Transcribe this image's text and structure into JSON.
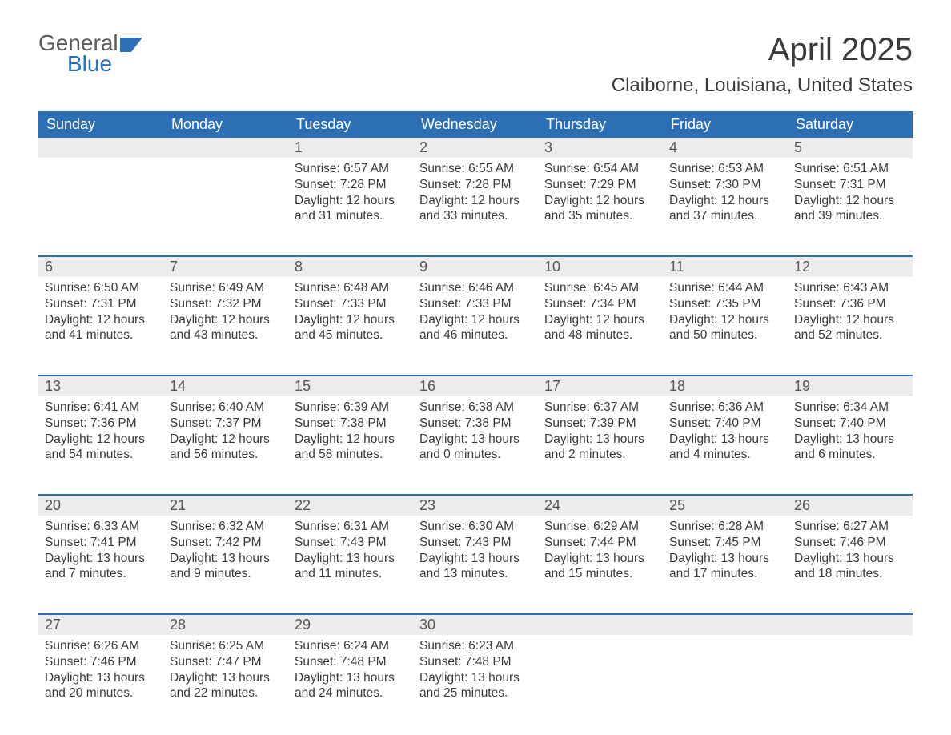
{
  "logo": {
    "word1": "General",
    "word2": "Blue"
  },
  "title": "April 2025",
  "location": "Claiborne, Louisiana, United States",
  "day_headers": [
    "Sunday",
    "Monday",
    "Tuesday",
    "Wednesday",
    "Thursday",
    "Friday",
    "Saturday"
  ],
  "colors": {
    "header_bg": "#2d6fb4",
    "header_text": "#ffffff",
    "daynum_bg": "#ececec",
    "week_divider": "#2d6fb4",
    "body_text": "#3a3a3a",
    "logo_gray": "#5a5a5a",
    "logo_blue": "#2d6fb4",
    "page_bg": "#ffffff"
  },
  "fonts": {
    "title_size_pt": 30,
    "location_size_pt": 18,
    "header_size_pt": 14,
    "daynum_size_pt": 14,
    "body_size_pt": 12
  },
  "layout": {
    "columns": 7,
    "weeks": 5,
    "first_day_column_index": 2
  },
  "weeks": [
    [
      null,
      null,
      {
        "n": "1",
        "sunrise": "Sunrise: 6:57 AM",
        "sunset": "Sunset: 7:28 PM",
        "day": "Daylight: 12 hours and 31 minutes."
      },
      {
        "n": "2",
        "sunrise": "Sunrise: 6:55 AM",
        "sunset": "Sunset: 7:28 PM",
        "day": "Daylight: 12 hours and 33 minutes."
      },
      {
        "n": "3",
        "sunrise": "Sunrise: 6:54 AM",
        "sunset": "Sunset: 7:29 PM",
        "day": "Daylight: 12 hours and 35 minutes."
      },
      {
        "n": "4",
        "sunrise": "Sunrise: 6:53 AM",
        "sunset": "Sunset: 7:30 PM",
        "day": "Daylight: 12 hours and 37 minutes."
      },
      {
        "n": "5",
        "sunrise": "Sunrise: 6:51 AM",
        "sunset": "Sunset: 7:31 PM",
        "day": "Daylight: 12 hours and 39 minutes."
      }
    ],
    [
      {
        "n": "6",
        "sunrise": "Sunrise: 6:50 AM",
        "sunset": "Sunset: 7:31 PM",
        "day": "Daylight: 12 hours and 41 minutes."
      },
      {
        "n": "7",
        "sunrise": "Sunrise: 6:49 AM",
        "sunset": "Sunset: 7:32 PM",
        "day": "Daylight: 12 hours and 43 minutes."
      },
      {
        "n": "8",
        "sunrise": "Sunrise: 6:48 AM",
        "sunset": "Sunset: 7:33 PM",
        "day": "Daylight: 12 hours and 45 minutes."
      },
      {
        "n": "9",
        "sunrise": "Sunrise: 6:46 AM",
        "sunset": "Sunset: 7:33 PM",
        "day": "Daylight: 12 hours and 46 minutes."
      },
      {
        "n": "10",
        "sunrise": "Sunrise: 6:45 AM",
        "sunset": "Sunset: 7:34 PM",
        "day": "Daylight: 12 hours and 48 minutes."
      },
      {
        "n": "11",
        "sunrise": "Sunrise: 6:44 AM",
        "sunset": "Sunset: 7:35 PM",
        "day": "Daylight: 12 hours and 50 minutes."
      },
      {
        "n": "12",
        "sunrise": "Sunrise: 6:43 AM",
        "sunset": "Sunset: 7:36 PM",
        "day": "Daylight: 12 hours and 52 minutes."
      }
    ],
    [
      {
        "n": "13",
        "sunrise": "Sunrise: 6:41 AM",
        "sunset": "Sunset: 7:36 PM",
        "day": "Daylight: 12 hours and 54 minutes."
      },
      {
        "n": "14",
        "sunrise": "Sunrise: 6:40 AM",
        "sunset": "Sunset: 7:37 PM",
        "day": "Daylight: 12 hours and 56 minutes."
      },
      {
        "n": "15",
        "sunrise": "Sunrise: 6:39 AM",
        "sunset": "Sunset: 7:38 PM",
        "day": "Daylight: 12 hours and 58 minutes."
      },
      {
        "n": "16",
        "sunrise": "Sunrise: 6:38 AM",
        "sunset": "Sunset: 7:38 PM",
        "day": "Daylight: 13 hours and 0 minutes."
      },
      {
        "n": "17",
        "sunrise": "Sunrise: 6:37 AM",
        "sunset": "Sunset: 7:39 PM",
        "day": "Daylight: 13 hours and 2 minutes."
      },
      {
        "n": "18",
        "sunrise": "Sunrise: 6:36 AM",
        "sunset": "Sunset: 7:40 PM",
        "day": "Daylight: 13 hours and 4 minutes."
      },
      {
        "n": "19",
        "sunrise": "Sunrise: 6:34 AM",
        "sunset": "Sunset: 7:40 PM",
        "day": "Daylight: 13 hours and 6 minutes."
      }
    ],
    [
      {
        "n": "20",
        "sunrise": "Sunrise: 6:33 AM",
        "sunset": "Sunset: 7:41 PM",
        "day": "Daylight: 13 hours and 7 minutes."
      },
      {
        "n": "21",
        "sunrise": "Sunrise: 6:32 AM",
        "sunset": "Sunset: 7:42 PM",
        "day": "Daylight: 13 hours and 9 minutes."
      },
      {
        "n": "22",
        "sunrise": "Sunrise: 6:31 AM",
        "sunset": "Sunset: 7:43 PM",
        "day": "Daylight: 13 hours and 11 minutes."
      },
      {
        "n": "23",
        "sunrise": "Sunrise: 6:30 AM",
        "sunset": "Sunset: 7:43 PM",
        "day": "Daylight: 13 hours and 13 minutes."
      },
      {
        "n": "24",
        "sunrise": "Sunrise: 6:29 AM",
        "sunset": "Sunset: 7:44 PM",
        "day": "Daylight: 13 hours and 15 minutes."
      },
      {
        "n": "25",
        "sunrise": "Sunrise: 6:28 AM",
        "sunset": "Sunset: 7:45 PM",
        "day": "Daylight: 13 hours and 17 minutes."
      },
      {
        "n": "26",
        "sunrise": "Sunrise: 6:27 AM",
        "sunset": "Sunset: 7:46 PM",
        "day": "Daylight: 13 hours and 18 minutes."
      }
    ],
    [
      {
        "n": "27",
        "sunrise": "Sunrise: 6:26 AM",
        "sunset": "Sunset: 7:46 PM",
        "day": "Daylight: 13 hours and 20 minutes."
      },
      {
        "n": "28",
        "sunrise": "Sunrise: 6:25 AM",
        "sunset": "Sunset: 7:47 PM",
        "day": "Daylight: 13 hours and 22 minutes."
      },
      {
        "n": "29",
        "sunrise": "Sunrise: 6:24 AM",
        "sunset": "Sunset: 7:48 PM",
        "day": "Daylight: 13 hours and 24 minutes."
      },
      {
        "n": "30",
        "sunrise": "Sunrise: 6:23 AM",
        "sunset": "Sunset: 7:48 PM",
        "day": "Daylight: 13 hours and 25 minutes."
      },
      null,
      null,
      null
    ]
  ]
}
